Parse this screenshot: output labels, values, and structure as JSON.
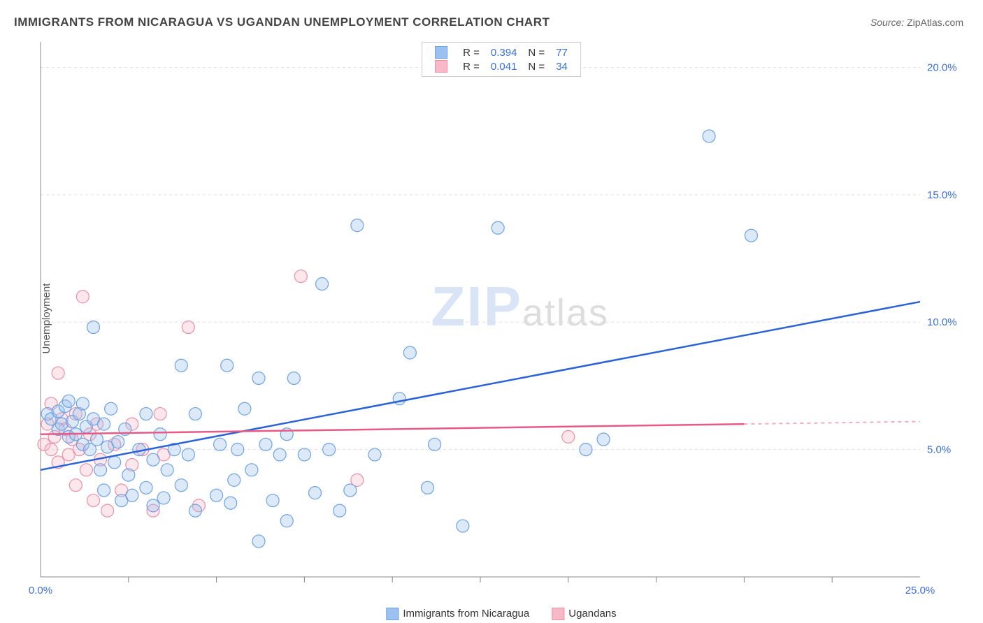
{
  "title": "IMMIGRANTS FROM NICARAGUA VS UGANDAN UNEMPLOYMENT CORRELATION CHART",
  "source_label": "Source:",
  "source_value": "ZipAtlas.com",
  "chart": {
    "type": "scatter",
    "ylabel": "Unemployment",
    "xlim": [
      0,
      25
    ],
    "ylim": [
      0,
      21
    ],
    "y_ticks": [
      {
        "v": 5,
        "label": "5.0%"
      },
      {
        "v": 10,
        "label": "10.0%"
      },
      {
        "v": 15,
        "label": "15.0%"
      },
      {
        "v": 20,
        "label": "20.0%"
      }
    ],
    "x_ticks": [
      {
        "v": 0,
        "label": "0.0%"
      },
      {
        "v": 25,
        "label": "25.0%"
      }
    ],
    "x_minor_ticks": [
      2.5,
      5,
      7.5,
      10,
      12.5,
      15,
      17.5,
      20,
      22.5
    ],
    "background_color": "#ffffff",
    "grid_color": "#e0e0e0",
    "axis_color": "#888888",
    "tick_label_color": "#3b6fd6",
    "marker_radius": 9,
    "marker_opacity": 0.35,
    "series": [
      {
        "name": "Immigrants from Nicaragua",
        "color_fill": "#9cc1ee",
        "color_stroke": "#6fa2e2",
        "R": "0.394",
        "N": "77",
        "trend": {
          "x1": 0,
          "y1": 4.2,
          "x2": 25,
          "y2": 10.8,
          "color": "#2b63d6",
          "dash_from_x": null
        },
        "points": [
          [
            0.2,
            6.4
          ],
          [
            0.3,
            6.2
          ],
          [
            0.5,
            5.8
          ],
          [
            0.5,
            6.5
          ],
          [
            0.6,
            6.0
          ],
          [
            0.7,
            6.7
          ],
          [
            0.8,
            5.5
          ],
          [
            0.8,
            6.9
          ],
          [
            0.9,
            6.1
          ],
          [
            1.0,
            5.6
          ],
          [
            1.1,
            6.4
          ],
          [
            1.2,
            5.2
          ],
          [
            1.2,
            6.8
          ],
          [
            1.3,
            5.9
          ],
          [
            1.4,
            5.0
          ],
          [
            1.5,
            6.2
          ],
          [
            1.5,
            9.8
          ],
          [
            1.6,
            5.4
          ],
          [
            1.7,
            4.2
          ],
          [
            1.8,
            6.0
          ],
          [
            1.8,
            3.4
          ],
          [
            1.9,
            5.1
          ],
          [
            2.0,
            6.6
          ],
          [
            2.1,
            4.5
          ],
          [
            2.2,
            5.3
          ],
          [
            2.3,
            3.0
          ],
          [
            2.4,
            5.8
          ],
          [
            2.5,
            4.0
          ],
          [
            2.6,
            3.2
          ],
          [
            2.8,
            5.0
          ],
          [
            3.0,
            3.5
          ],
          [
            3.0,
            6.4
          ],
          [
            3.2,
            4.6
          ],
          [
            3.2,
            2.8
          ],
          [
            3.4,
            5.6
          ],
          [
            3.5,
            3.1
          ],
          [
            3.6,
            4.2
          ],
          [
            3.8,
            5.0
          ],
          [
            4.0,
            3.6
          ],
          [
            4.0,
            8.3
          ],
          [
            4.2,
            4.8
          ],
          [
            4.4,
            2.6
          ],
          [
            4.4,
            6.4
          ],
          [
            5.0,
            3.2
          ],
          [
            5.1,
            5.2
          ],
          [
            5.3,
            8.3
          ],
          [
            5.4,
            2.9
          ],
          [
            5.5,
            3.8
          ],
          [
            5.6,
            5.0
          ],
          [
            5.8,
            6.6
          ],
          [
            6.0,
            4.2
          ],
          [
            6.2,
            1.4
          ],
          [
            6.2,
            7.8
          ],
          [
            6.4,
            5.2
          ],
          [
            6.6,
            3.0
          ],
          [
            6.8,
            4.8
          ],
          [
            7.0,
            5.6
          ],
          [
            7.0,
            2.2
          ],
          [
            7.2,
            7.8
          ],
          [
            7.5,
            4.8
          ],
          [
            7.8,
            3.3
          ],
          [
            8.0,
            11.5
          ],
          [
            8.2,
            5.0
          ],
          [
            8.5,
            2.6
          ],
          [
            8.8,
            3.4
          ],
          [
            9.0,
            13.8
          ],
          [
            9.5,
            4.8
          ],
          [
            10.2,
            7.0
          ],
          [
            10.5,
            8.8
          ],
          [
            11.0,
            3.5
          ],
          [
            11.2,
            5.2
          ],
          [
            12.0,
            2.0
          ],
          [
            13.0,
            13.7
          ],
          [
            15.5,
            5.0
          ],
          [
            16.0,
            5.4
          ],
          [
            19.0,
            17.3
          ],
          [
            20.2,
            13.4
          ]
        ]
      },
      {
        "name": "Ugandans",
        "color_fill": "#f7b9c8",
        "color_stroke": "#ec8fa8",
        "R": "0.041",
        "N": "34",
        "trend": {
          "x1": 0,
          "y1": 5.6,
          "x2": 25,
          "y2": 6.1,
          "color": "#e85a85",
          "dash_from_x": 20
        },
        "points": [
          [
            0.1,
            5.2
          ],
          [
            0.2,
            6.0
          ],
          [
            0.3,
            5.0
          ],
          [
            0.3,
            6.8
          ],
          [
            0.4,
            5.5
          ],
          [
            0.5,
            8.0
          ],
          [
            0.5,
            4.5
          ],
          [
            0.6,
            6.2
          ],
          [
            0.7,
            5.8
          ],
          [
            0.8,
            4.8
          ],
          [
            0.9,
            5.4
          ],
          [
            1.0,
            6.4
          ],
          [
            1.0,
            3.6
          ],
          [
            1.1,
            5.0
          ],
          [
            1.2,
            11.0
          ],
          [
            1.3,
            4.2
          ],
          [
            1.4,
            5.6
          ],
          [
            1.5,
            3.0
          ],
          [
            1.6,
            6.0
          ],
          [
            1.7,
            4.6
          ],
          [
            1.9,
            2.6
          ],
          [
            2.1,
            5.2
          ],
          [
            2.3,
            3.4
          ],
          [
            2.6,
            4.4
          ],
          [
            2.6,
            6.0
          ],
          [
            2.9,
            5.0
          ],
          [
            3.2,
            2.6
          ],
          [
            3.4,
            6.4
          ],
          [
            3.5,
            4.8
          ],
          [
            4.2,
            9.8
          ],
          [
            4.5,
            2.8
          ],
          [
            7.4,
            11.8
          ],
          [
            9.0,
            3.8
          ],
          [
            15.0,
            5.5
          ]
        ]
      }
    ],
    "legend_top": {
      "R_label": "R =",
      "N_label": "N ="
    },
    "watermark": {
      "part1": "ZIP",
      "part2": "atlas"
    }
  }
}
